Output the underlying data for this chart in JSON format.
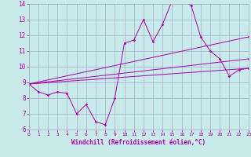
{
  "xlabel": "Windchill (Refroidissement éolien,°C)",
  "bg_color": "#c8eaea",
  "line_color": "#aa00aa",
  "grid_color": "#aaaacc",
  "xmin": 0,
  "xmax": 23,
  "ymin": 6,
  "ymax": 14,
  "yticks": [
    6,
    7,
    8,
    9,
    10,
    11,
    12,
    13,
    14
  ],
  "xticks": [
    0,
    1,
    2,
    3,
    4,
    5,
    6,
    7,
    8,
    9,
    10,
    11,
    12,
    13,
    14,
    15,
    16,
    17,
    18,
    19,
    20,
    21,
    22,
    23
  ],
  "line1_x": [
    0,
    1,
    2,
    3,
    4,
    5,
    6,
    7,
    8,
    9,
    10,
    11,
    12,
    13,
    14,
    15,
    16,
    17,
    18,
    19,
    20,
    21,
    22,
    23
  ],
  "line1_y": [
    8.9,
    8.4,
    8.2,
    8.4,
    8.3,
    7.0,
    7.6,
    6.5,
    6.3,
    8.0,
    11.5,
    11.7,
    13.0,
    11.6,
    12.7,
    14.2,
    14.3,
    13.9,
    11.9,
    11.0,
    10.5,
    9.4,
    9.8,
    9.9
  ],
  "line2_x": [
    0,
    23
  ],
  "line2_y": [
    8.9,
    9.9
  ],
  "line3_x": [
    0,
    23
  ],
  "line3_y": [
    8.9,
    10.5
  ],
  "line4_x": [
    0,
    23
  ],
  "line4_y": [
    8.9,
    11.9
  ],
  "marker_size": 1.8,
  "line_width": 0.7
}
